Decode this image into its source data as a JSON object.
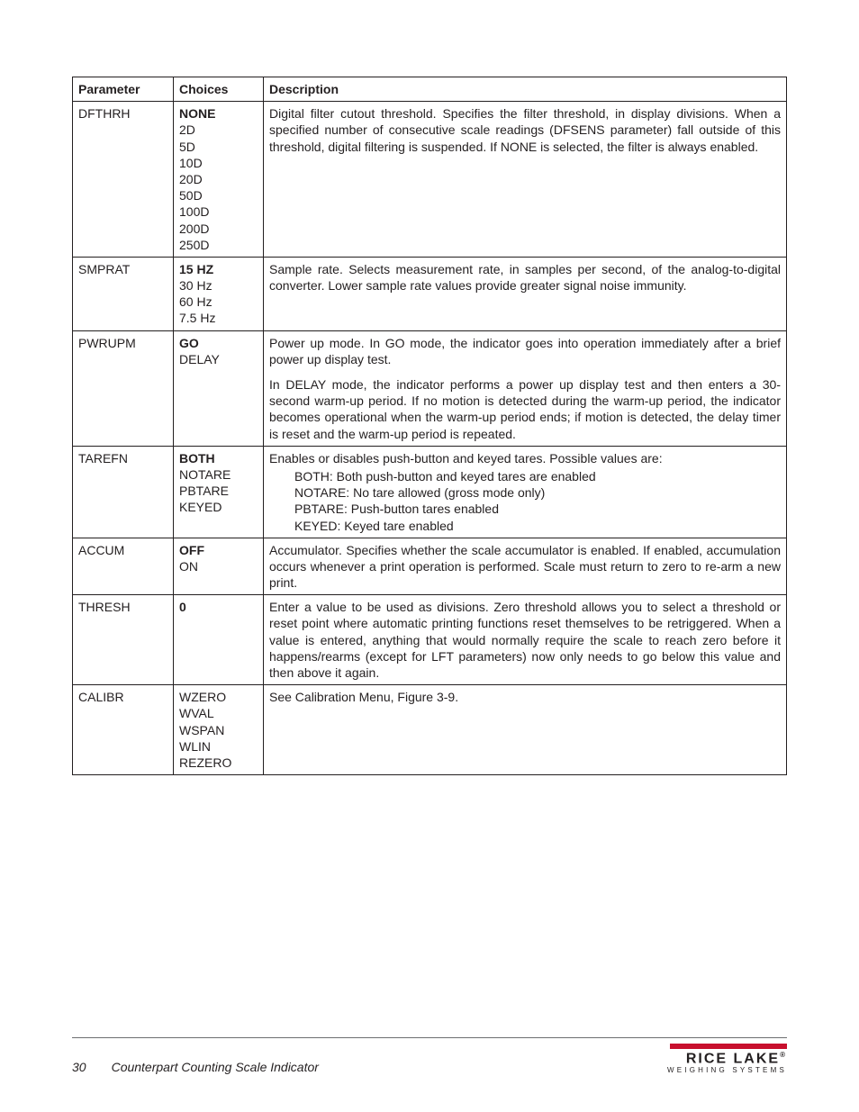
{
  "table": {
    "headers": {
      "parameter": "Parameter",
      "choices": "Choices",
      "description": "Description"
    },
    "rows": {
      "dfthrh": {
        "param": "DFTHRH",
        "choices": [
          "NONE",
          "2D",
          "5D",
          "10D",
          "20D",
          "50D",
          "100D",
          "200D",
          "250D"
        ],
        "desc_p1": "Digital filter cutout threshold. Specifies the filter threshold, in display divisions. When a specified number of consecutive scale readings (DFSENS parameter) fall outside of this threshold, digital filtering is suspended. If NONE is selected, the filter is always enabled."
      },
      "smprat": {
        "param": "SMPRAT",
        "choices": [
          "15 HZ",
          "30 Hz",
          "60 Hz",
          "7.5 Hz"
        ],
        "desc_p1": "Sample rate. Selects measurement rate, in samples per second, of the analog-to-digital converter. Lower sample rate values provide greater signal noise immunity."
      },
      "pwrupm": {
        "param": "PWRUPM",
        "choices": [
          "GO",
          "DELAY"
        ],
        "desc_p1": "Power up mode. In GO mode, the indicator goes into operation immediately after a brief power up display test.",
        "desc_p2": "In DELAY mode, the indicator performs a power up display test and then enters a 30-second warm-up period. If no motion is detected during the warm-up period, the indicator becomes operational when the warm-up period ends; if motion is detected, the delay timer is reset and the warm-up period is repeated."
      },
      "tarefn": {
        "param": "TAREFN",
        "choices": [
          "BOTH",
          "NOTARE",
          "PBTARE",
          "KEYED"
        ],
        "desc_p1": "Enables or disables push-button and keyed tares. Possible values are:",
        "sub": [
          "BOTH: Both push-button and keyed tares are enabled",
          "NOTARE: No tare allowed (gross mode only)",
          "PBTARE: Push-button tares enabled",
          "KEYED: Keyed tare enabled"
        ]
      },
      "accum": {
        "param": "ACCUM",
        "choices": [
          "OFF",
          "ON"
        ],
        "desc_p1": "Accumulator. Specifies whether the scale accumulator is enabled. If enabled, accumulation occurs whenever a print operation is performed. Scale must return to zero to re-arm a new print."
      },
      "thresh": {
        "param": "THRESH",
        "choices": [
          "0"
        ],
        "desc_p1": "Enter a value to be used as divisions. Zero threshold allows you to select a threshold or reset point where automatic printing functions reset themselves to be retriggered. When a value is entered, anything that would normally require the scale to reach zero before it happens/rearms (except for LFT parameters) now only needs to go below this value and then above it again."
      },
      "calibr": {
        "param": "CALIBR",
        "choices": [
          "WZERO",
          "WVAL",
          "WSPAN",
          "WLIN",
          "REZERO"
        ],
        "desc_p1": "See Calibration Menu, Figure 3-9."
      }
    }
  },
  "footer": {
    "page_num": "30",
    "doc_title": "Counterpart Counting Scale Indicator",
    "logo_name": "RICE LAKE",
    "logo_sub": "WEIGHING SYSTEMS",
    "reg": "®"
  }
}
